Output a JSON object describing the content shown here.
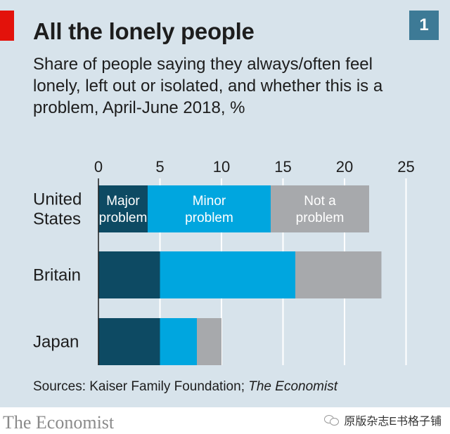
{
  "header": {
    "title": "All the lonely people",
    "subtitle": "Share of people saying they always/often feel lonely, left out or isolated, and whether this is a problem, April-June 2018, %",
    "chart_number": "1"
  },
  "source": {
    "prefix": "Sources: Kaiser Family Foundation; ",
    "italic": "The Economist"
  },
  "footer": {
    "brand": "The Economist",
    "watermark": "原版杂志E书格子铺"
  },
  "colors": {
    "major": "#0d4a63",
    "minor": "#00a6df",
    "not": "#a7a9ac",
    "panel": "#d7e3eb",
    "accent_red": "#e3120b"
  },
  "chart_data": {
    "type": "bar",
    "orientation": "horizontal",
    "stacked": true,
    "categories": [
      "United States",
      "Britain",
      "Japan"
    ],
    "category_lines": [
      [
        "United",
        "States"
      ],
      [
        "Britain"
      ],
      [
        "Japan"
      ]
    ],
    "series": [
      {
        "name": "Major problem",
        "label_lines": [
          "Major",
          "problem"
        ],
        "values": [
          4,
          5,
          5
        ]
      },
      {
        "name": "Minor problem",
        "label_lines": [
          "Minor",
          "problem"
        ],
        "values": [
          10,
          11,
          3
        ]
      },
      {
        "name": "Not a problem",
        "label_lines": [
          "Not a",
          "problem"
        ],
        "values": [
          8,
          7,
          2
        ]
      }
    ],
    "xlim": [
      0,
      25
    ],
    "xticks": [
      0,
      5,
      10,
      15,
      20,
      25
    ],
    "xaxis_position": "top",
    "grid": true
  }
}
